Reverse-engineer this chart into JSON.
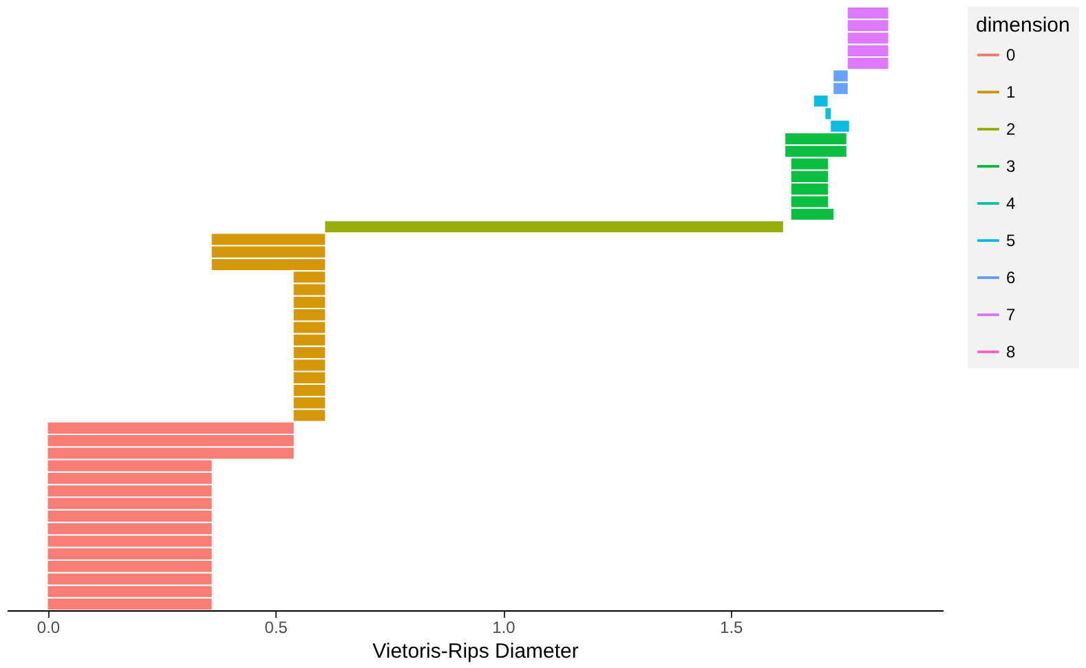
{
  "chart_data": {
    "type": "bar",
    "orientation": "horizontal",
    "stacked": true,
    "xlabel": "Vietoris-Rips Diameter",
    "legend_title": "dimension",
    "legend": "right",
    "grid": false,
    "tick_labels": "x",
    "xlim": [
      -0.09,
      1.966
    ],
    "xticks": [
      {
        "value": 0,
        "label": "0.0"
      },
      {
        "value": 0.5,
        "label": "0.5"
      },
      {
        "value": 1,
        "label": "1.0"
      },
      {
        "value": 1.5,
        "label": "1.5"
      }
    ],
    "categories": [
      null,
      null,
      null,
      null,
      null,
      null,
      null,
      null,
      null,
      null,
      null,
      null,
      null,
      null,
      null,
      null,
      null,
      null,
      null,
      null,
      null,
      null,
      null,
      null,
      null,
      null,
      null,
      null,
      null,
      null,
      null,
      null,
      null,
      null,
      null,
      null,
      null,
      null,
      null,
      null,
      null,
      null,
      null,
      null,
      null,
      null,
      null,
      null
    ],
    "series": [
      {
        "name": "0",
        "color": "#f8766d",
        "values": [
          null,
          null,
          null,
          null,
          null,
          null,
          null,
          null,
          null,
          null,
          null,
          null,
          null,
          null,
          null,
          null,
          null,
          null,
          null,
          null,
          null,
          null,
          null,
          null,
          null,
          null,
          null,
          null,
          null,
          null,
          null,
          null,
          null,
          0.54,
          0.54,
          0.54,
          0.36,
          0.36,
          0.36,
          0.36,
          0.36,
          0.36,
          0.36,
          0.36,
          0.36,
          0.36,
          0.36,
          0.36
        ],
        "base": [
          null,
          null,
          null,
          null,
          null,
          null,
          null,
          null,
          null,
          null,
          null,
          null,
          null,
          null,
          null,
          null,
          null,
          null,
          null,
          null,
          null,
          null,
          null,
          null,
          null,
          null,
          null,
          null,
          null,
          null,
          null,
          null,
          null,
          0,
          0,
          0,
          0,
          0,
          0,
          0,
          0,
          0,
          0,
          0,
          0,
          0,
          0,
          0
        ]
      },
      {
        "name": "1",
        "color": "#d39200",
        "values": [
          null,
          null,
          null,
          null,
          null,
          null,
          null,
          null,
          null,
          null,
          null,
          null,
          null,
          null,
          null,
          null,
          null,
          null,
          0.249,
          0.249,
          0.249,
          0.069,
          0.069,
          0.069,
          0.069,
          0.069,
          0.069,
          0.069,
          0.069,
          0.069,
          0.069,
          0.069,
          0.069,
          null,
          null,
          null,
          null,
          null,
          null,
          null,
          null,
          null,
          null,
          null,
          null,
          null,
          null,
          null
        ],
        "base": [
          null,
          null,
          null,
          null,
          null,
          null,
          null,
          null,
          null,
          null,
          null,
          null,
          null,
          null,
          null,
          null,
          null,
          null,
          0.36,
          0.36,
          0.36,
          0.54,
          0.54,
          0.54,
          0.54,
          0.54,
          0.54,
          0.54,
          0.54,
          0.54,
          0.54,
          0.54,
          0.54,
          null,
          null,
          null,
          null,
          null,
          null,
          null,
          null,
          null,
          null,
          null,
          null,
          null,
          null,
          null
        ]
      },
      {
        "name": "2",
        "color": "#93aa00",
        "values": [
          null,
          null,
          null,
          null,
          null,
          null,
          null,
          null,
          null,
          null,
          null,
          null,
          null,
          null,
          null,
          null,
          null,
          1.006,
          null,
          null,
          null,
          null,
          null,
          null,
          null,
          null,
          null,
          null,
          null,
          null,
          null,
          null,
          null,
          null,
          null,
          null,
          null,
          null,
          null,
          null,
          null,
          null,
          null,
          null,
          null,
          null,
          null,
          null
        ],
        "base": [
          null,
          null,
          null,
          null,
          null,
          null,
          null,
          null,
          null,
          null,
          null,
          null,
          null,
          null,
          null,
          null,
          null,
          0.609,
          null,
          null,
          null,
          null,
          null,
          null,
          null,
          null,
          null,
          null,
          null,
          null,
          null,
          null,
          null,
          null,
          null,
          null,
          null,
          null,
          null,
          null,
          null,
          null,
          null,
          null,
          null,
          null,
          null,
          null
        ]
      },
      {
        "name": "3",
        "color": "#00ba38",
        "values": [
          null,
          null,
          null,
          null,
          null,
          null,
          null,
          null,
          null,
          null,
          0.134,
          0.134,
          0.081,
          0.081,
          0.081,
          0.081,
          0.093,
          null,
          null,
          null,
          null,
          null,
          null,
          null,
          null,
          null,
          null,
          null,
          null,
          null,
          null,
          null,
          null,
          null,
          null,
          null,
          null,
          null,
          null,
          null,
          null,
          null,
          null,
          null,
          null,
          null,
          null,
          null
        ],
        "base": [
          null,
          null,
          null,
          null,
          null,
          null,
          null,
          null,
          null,
          null,
          1.62,
          1.62,
          1.633,
          1.633,
          1.633,
          1.633,
          1.633,
          null,
          null,
          null,
          null,
          null,
          null,
          null,
          null,
          null,
          null,
          null,
          null,
          null,
          null,
          null,
          null,
          null,
          null,
          null,
          null,
          null,
          null,
          null,
          null,
          null,
          null,
          null,
          null,
          null,
          null,
          null
        ]
      },
      {
        "name": "4",
        "color": "#00c19f",
        "values": [
          null,
          null,
          null,
          null,
          null,
          null,
          null,
          null,
          null,
          null,
          null,
          null,
          null,
          null,
          null,
          null,
          null,
          null,
          null,
          null,
          null,
          null,
          null,
          null,
          null,
          null,
          null,
          null,
          null,
          null,
          null,
          null,
          null,
          null,
          null,
          null,
          null,
          null,
          null,
          null,
          null,
          null,
          null,
          null,
          null,
          null,
          null,
          null
        ]
      },
      {
        "name": "5",
        "color": "#00b9e3",
        "values": [
          null,
          null,
          null,
          null,
          null,
          null,
          null,
          0.03,
          0.012,
          0.04,
          null,
          null,
          null,
          null,
          null,
          null,
          null,
          null,
          null,
          null,
          null,
          null,
          null,
          null,
          null,
          null,
          null,
          null,
          null,
          null,
          null,
          null,
          null,
          null,
          null,
          null,
          null,
          null,
          null,
          null,
          null,
          null,
          null,
          null,
          null,
          null,
          null,
          null
        ],
        "base": [
          null,
          null,
          null,
          null,
          null,
          null,
          null,
          1.683,
          1.708,
          1.72,
          null,
          null,
          null,
          null,
          null,
          null,
          null,
          null,
          null,
          null,
          null,
          null,
          null,
          null,
          null,
          null,
          null,
          null,
          null,
          null,
          null,
          null,
          null,
          null,
          null,
          null,
          null,
          null,
          null,
          null,
          null,
          null,
          null,
          null,
          null,
          null,
          null,
          null
        ]
      },
      {
        "name": "6",
        "color": "#619cff",
        "values": [
          null,
          null,
          null,
          null,
          null,
          0.031,
          0.031,
          null,
          null,
          null,
          null,
          null,
          null,
          null,
          null,
          null,
          null,
          null,
          null,
          null,
          null,
          null,
          null,
          null,
          null,
          null,
          null,
          null,
          null,
          null,
          null,
          null,
          null,
          null,
          null,
          null,
          null,
          null,
          null,
          null,
          null,
          null,
          null,
          null,
          null,
          null,
          null,
          null
        ],
        "base": [
          null,
          null,
          null,
          null,
          null,
          1.726,
          1.726,
          null,
          null,
          null,
          null,
          null,
          null,
          null,
          null,
          null,
          null,
          null,
          null,
          null,
          null,
          null,
          null,
          null,
          null,
          null,
          null,
          null,
          null,
          null,
          null,
          null,
          null,
          null,
          null,
          null,
          null,
          null,
          null,
          null,
          null,
          null,
          null,
          null,
          null,
          null,
          null,
          null
        ]
      },
      {
        "name": "7",
        "color": "#db72fb",
        "values": [
          0.089,
          0.089,
          0.089,
          0.089,
          0.089,
          null,
          null,
          null,
          null,
          null,
          null,
          null,
          null,
          null,
          null,
          null,
          null,
          null,
          null,
          null,
          null,
          null,
          null,
          null,
          null,
          null,
          null,
          null,
          null,
          null,
          null,
          null,
          null,
          null,
          null,
          null,
          null,
          null,
          null,
          null,
          null,
          null,
          null,
          null,
          null,
          null,
          null,
          null
        ],
        "base": [
          1.757,
          1.757,
          1.757,
          1.757,
          1.757,
          null,
          null,
          null,
          null,
          null,
          null,
          null,
          null,
          null,
          null,
          null,
          null,
          null,
          null,
          null,
          null,
          null,
          null,
          null,
          null,
          null,
          null,
          null,
          null,
          null,
          null,
          null,
          null,
          null,
          null,
          null,
          null,
          null,
          null,
          null,
          null,
          null,
          null,
          null,
          null,
          null,
          null,
          null
        ]
      },
      {
        "name": "8",
        "color": "#ff61c3",
        "values": [
          null,
          null,
          null,
          null,
          null,
          null,
          null,
          null,
          null,
          null,
          null,
          null,
          null,
          null,
          null,
          null,
          null,
          null,
          null,
          null,
          null,
          null,
          null,
          null,
          null,
          null,
          null,
          null,
          null,
          null,
          null,
          null,
          null,
          null,
          null,
          null,
          null,
          null,
          null,
          null,
          null,
          null,
          null,
          null,
          null,
          null,
          null,
          null
        ]
      }
    ]
  }
}
